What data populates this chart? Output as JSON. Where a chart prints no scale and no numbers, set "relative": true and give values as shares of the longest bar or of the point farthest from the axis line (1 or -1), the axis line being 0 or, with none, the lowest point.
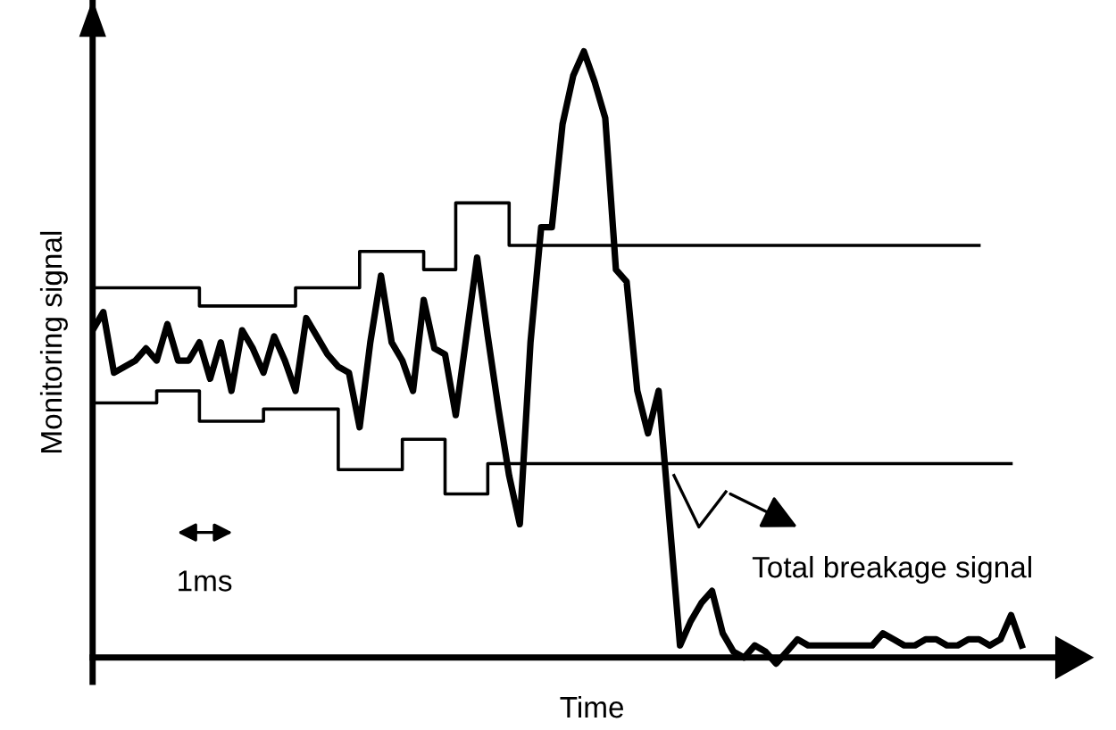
{
  "chart_data": {
    "type": "line",
    "relative": true,
    "xlabel": "Time",
    "ylabel": "Monitoring signal",
    "annotations": [
      "1ms",
      "Total breakage signal"
    ],
    "categories": [
      null,
      null,
      null,
      null,
      null,
      null,
      null,
      null,
      null,
      null,
      null,
      null,
      null,
      null,
      null,
      null,
      null,
      null,
      null,
      null,
      null,
      null,
      null,
      null,
      null,
      null,
      null,
      null,
      null,
      null,
      null,
      null,
      null,
      null,
      null,
      null,
      null,
      null,
      null,
      null,
      null,
      null,
      null,
      null,
      null,
      null,
      null,
      null,
      null,
      null,
      null,
      null,
      null,
      null,
      null,
      null,
      null,
      null,
      null,
      null,
      null,
      null,
      null,
      null,
      null,
      null,
      null,
      null,
      null,
      null,
      null,
      null,
      null,
      null,
      null,
      null,
      null,
      null,
      null,
      null,
      null,
      null,
      null,
      null,
      null,
      null,
      null,
      null
    ],
    "series": [
      {
        "color": "#000000",
        "values": [
          0.54,
          0.57,
          0.47,
          0.48,
          0.49,
          0.51,
          0.49,
          0.55,
          0.49,
          0.49,
          0.52,
          0.46,
          0.52,
          0.44,
          0.54,
          0.51,
          0.47,
          0.53,
          0.49,
          0.44,
          0.56,
          0.53,
          0.5,
          0.48,
          0.47,
          0.38,
          0.52,
          0.63,
          0.52,
          0.49,
          0.44,
          0.59,
          0.51,
          0.5,
          0.4,
          0.53,
          0.66,
          0.53,
          0.41,
          0.3,
          0.22,
          0.52,
          0.71,
          0.71,
          0.88,
          0.96,
          1,
          0.95,
          0.89,
          0.64,
          0.62,
          0.44,
          0.37,
          0.44,
          0.23,
          0.02,
          0.06,
          0.09,
          0.11,
          0.04,
          0.01,
          0.0,
          0.02,
          0.01,
          -0.01,
          0.01,
          0.03,
          0.02,
          0.02,
          0.02,
          0.02,
          0.02,
          0.02,
          0.02,
          0.04,
          0.03,
          0.02,
          0.02,
          0.03,
          0.03,
          0.02,
          0.02,
          0.03,
          0.03,
          0.02,
          0.03,
          0.07,
          0.02
        ]
      },
      {
        "type": "step",
        "color": "#000000",
        "values": [
          0.61,
          0.61,
          0.61,
          0.61,
          0.61,
          0.61,
          0.61,
          0.61,
          0.61,
          0.61,
          0.58,
          0.58,
          0.58,
          0.58,
          0.58,
          0.58,
          0.58,
          0.58,
          0.58,
          0.61,
          0.61,
          0.61,
          0.61,
          0.61,
          0.61,
          0.67,
          0.67,
          0.67,
          0.67,
          0.67,
          0.67,
          0.64,
          0.64,
          0.64,
          0.75,
          0.75,
          0.75,
          0.75,
          0.75,
          0.68,
          0.68,
          0.68,
          0.68,
          0.68,
          0.68,
          0.68,
          0.68,
          0.68,
          0.68,
          0.68,
          0.68,
          0.68,
          0.68,
          0.68,
          0.68,
          0.68,
          0.68,
          0.68,
          0.68,
          0.68,
          0.68,
          0.68,
          0.68,
          0.68,
          0.68,
          0.68,
          0.68,
          0.68,
          0.68,
          0.68,
          0.68,
          0.68,
          0.68,
          0.68,
          0.68,
          0.68,
          0.68,
          0.68,
          0.68,
          0.68,
          0.68,
          0.68,
          0.68,
          0.68,
          null,
          null,
          null,
          null
        ]
      },
      {
        "type": "step",
        "color": "#000000",
        "values": [
          0.42,
          0.42,
          0.42,
          0.42,
          0.42,
          0.42,
          0.44,
          0.44,
          0.44,
          0.44,
          0.39,
          0.39,
          0.39,
          0.39,
          0.39,
          0.39,
          0.41,
          0.41,
          0.41,
          0.41,
          0.41,
          0.41,
          0.41,
          0.31,
          0.31,
          0.31,
          0.31,
          0.31,
          0.31,
          0.36,
          0.36,
          0.36,
          0.36,
          0.27,
          0.27,
          0.27,
          0.27,
          0.32,
          0.32,
          0.32,
          0.32,
          0.32,
          0.32,
          0.32,
          0.32,
          0.32,
          0.32,
          0.32,
          0.32,
          0.32,
          0.32,
          0.32,
          0.32,
          0.32,
          0.32,
          0.32,
          0.32,
          0.32,
          0.32,
          0.32,
          0.32,
          0.32,
          0.32,
          0.32,
          0.32,
          0.32,
          0.32,
          0.32,
          0.32,
          0.32,
          0.32,
          0.32,
          0.32,
          0.32,
          0.32,
          0.32,
          0.32,
          0.32,
          0.32,
          0.32,
          0.32,
          0.32,
          0.32,
          0.32,
          0.32,
          0.32,
          0.32,
          null
        ]
      }
    ]
  }
}
